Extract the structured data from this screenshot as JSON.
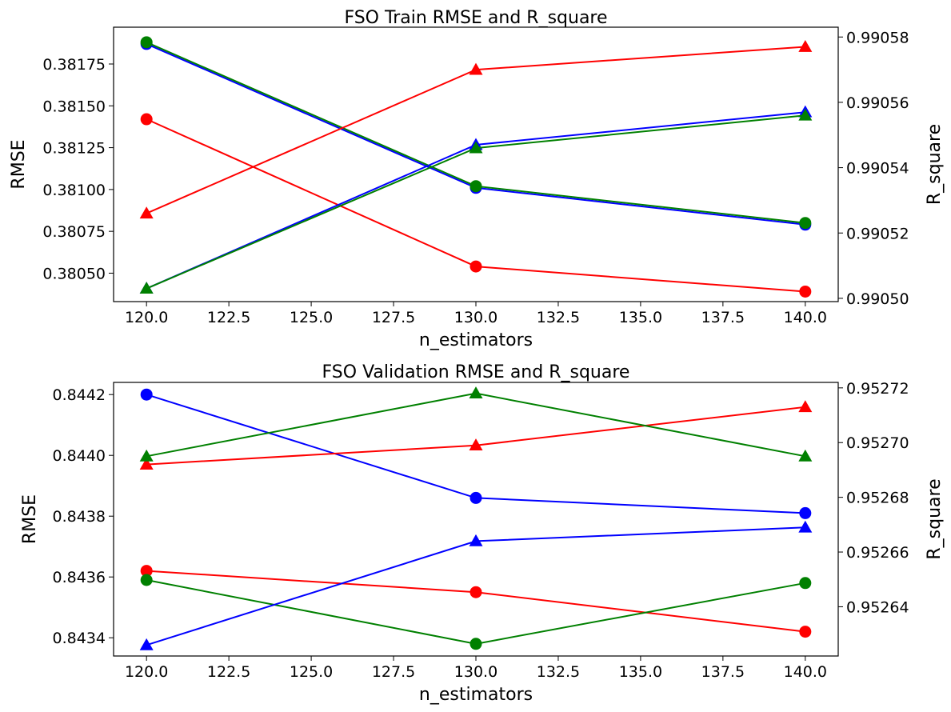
{
  "chart_data": [
    {
      "type": "line",
      "title": "FSO Train RMSE and R_square",
      "xlabel": "n_estimators",
      "ylabel": "RMSE",
      "y2label": "R_square",
      "x": [
        120,
        130,
        140
      ],
      "xlim": [
        119.0,
        141.0
      ],
      "xticks": [
        120.0,
        122.5,
        125.0,
        127.5,
        130.0,
        132.5,
        135.0,
        137.5,
        140.0
      ],
      "xtick_labels": [
        "120.0",
        "122.5",
        "125.0",
        "127.5",
        "130.0",
        "132.5",
        "135.0",
        "137.5",
        "140.0"
      ],
      "ylim": [
        0.38033,
        0.38197
      ],
      "yticks": [
        0.3805,
        0.38075,
        0.381,
        0.38125,
        0.3815,
        0.38175
      ],
      "ytick_labels": [
        "0.38050",
        "0.38075",
        "0.38100",
        "0.38125",
        "0.38150",
        "0.38175"
      ],
      "y2lim": [
        0.990499,
        0.990583
      ],
      "y2ticks": [
        0.9905,
        0.99052,
        0.99054,
        0.99056,
        0.99058
      ],
      "y2tick_labels": [
        "0.99050",
        "0.99052",
        "0.99054",
        "0.99056",
        "0.99058"
      ],
      "grid": false,
      "series": [
        {
          "axis": "left",
          "marker": "circle",
          "color": "#ff0000",
          "values": [
            0.38142,
            0.38054,
            0.38039
          ]
        },
        {
          "axis": "left",
          "marker": "circle",
          "color": "#0000ff",
          "values": [
            0.38187,
            0.38101,
            0.38079
          ]
        },
        {
          "axis": "left",
          "marker": "circle",
          "color": "#008000",
          "values": [
            0.38188,
            0.38102,
            0.3808
          ]
        },
        {
          "axis": "right",
          "marker": "triangle",
          "color": "#ff0000",
          "values": [
            0.990526,
            0.99057,
            0.990577
          ]
        },
        {
          "axis": "right",
          "marker": "triangle",
          "color": "#0000ff",
          "values": [
            0.990503,
            0.990547,
            0.990557
          ]
        },
        {
          "axis": "right",
          "marker": "triangle",
          "color": "#008000",
          "values": [
            0.990503,
            0.990546,
            0.990556
          ]
        }
      ]
    },
    {
      "type": "line",
      "title": "FSO Validation RMSE and R_square",
      "xlabel": "n_estimators",
      "ylabel": "RMSE",
      "y2label": "R_square",
      "x": [
        120,
        130,
        140
      ],
      "xlim": [
        119.0,
        141.0
      ],
      "xticks": [
        120.0,
        122.5,
        125.0,
        127.5,
        130.0,
        132.5,
        135.0,
        137.5,
        140.0
      ],
      "xtick_labels": [
        "120.0",
        "122.5",
        "125.0",
        "127.5",
        "130.0",
        "132.5",
        "135.0",
        "137.5",
        "140.0"
      ],
      "ylim": [
        0.84334,
        0.84424
      ],
      "yticks": [
        0.8434,
        0.8436,
        0.8438,
        0.844,
        0.8442
      ],
      "ytick_labels": [
        "0.8434",
        "0.8436",
        "0.8438",
        "0.8440",
        "0.8442"
      ],
      "y2lim": [
        0.952622,
        0.952722
      ],
      "y2ticks": [
        0.95264,
        0.95266,
        0.95268,
        0.9527,
        0.95272
      ],
      "y2tick_labels": [
        "0.95264",
        "0.95266",
        "0.95268",
        "0.95270",
        "0.95272"
      ],
      "grid": false,
      "series": [
        {
          "axis": "left",
          "marker": "circle",
          "color": "#ff0000",
          "values": [
            0.84362,
            0.84355,
            0.84342
          ]
        },
        {
          "axis": "left",
          "marker": "circle",
          "color": "#0000ff",
          "values": [
            0.8442,
            0.84386,
            0.84381
          ]
        },
        {
          "axis": "left",
          "marker": "circle",
          "color": "#008000",
          "values": [
            0.84359,
            0.84338,
            0.84358
          ]
        },
        {
          "axis": "right",
          "marker": "triangle",
          "color": "#ff0000",
          "values": [
            0.952692,
            0.952699,
            0.952713
          ]
        },
        {
          "axis": "right",
          "marker": "triangle",
          "color": "#0000ff",
          "values": [
            0.952626,
            0.952664,
            0.952669
          ]
        },
        {
          "axis": "right",
          "marker": "triangle",
          "color": "#008000",
          "values": [
            0.952695,
            0.952718,
            0.952695
          ]
        }
      ]
    }
  ]
}
